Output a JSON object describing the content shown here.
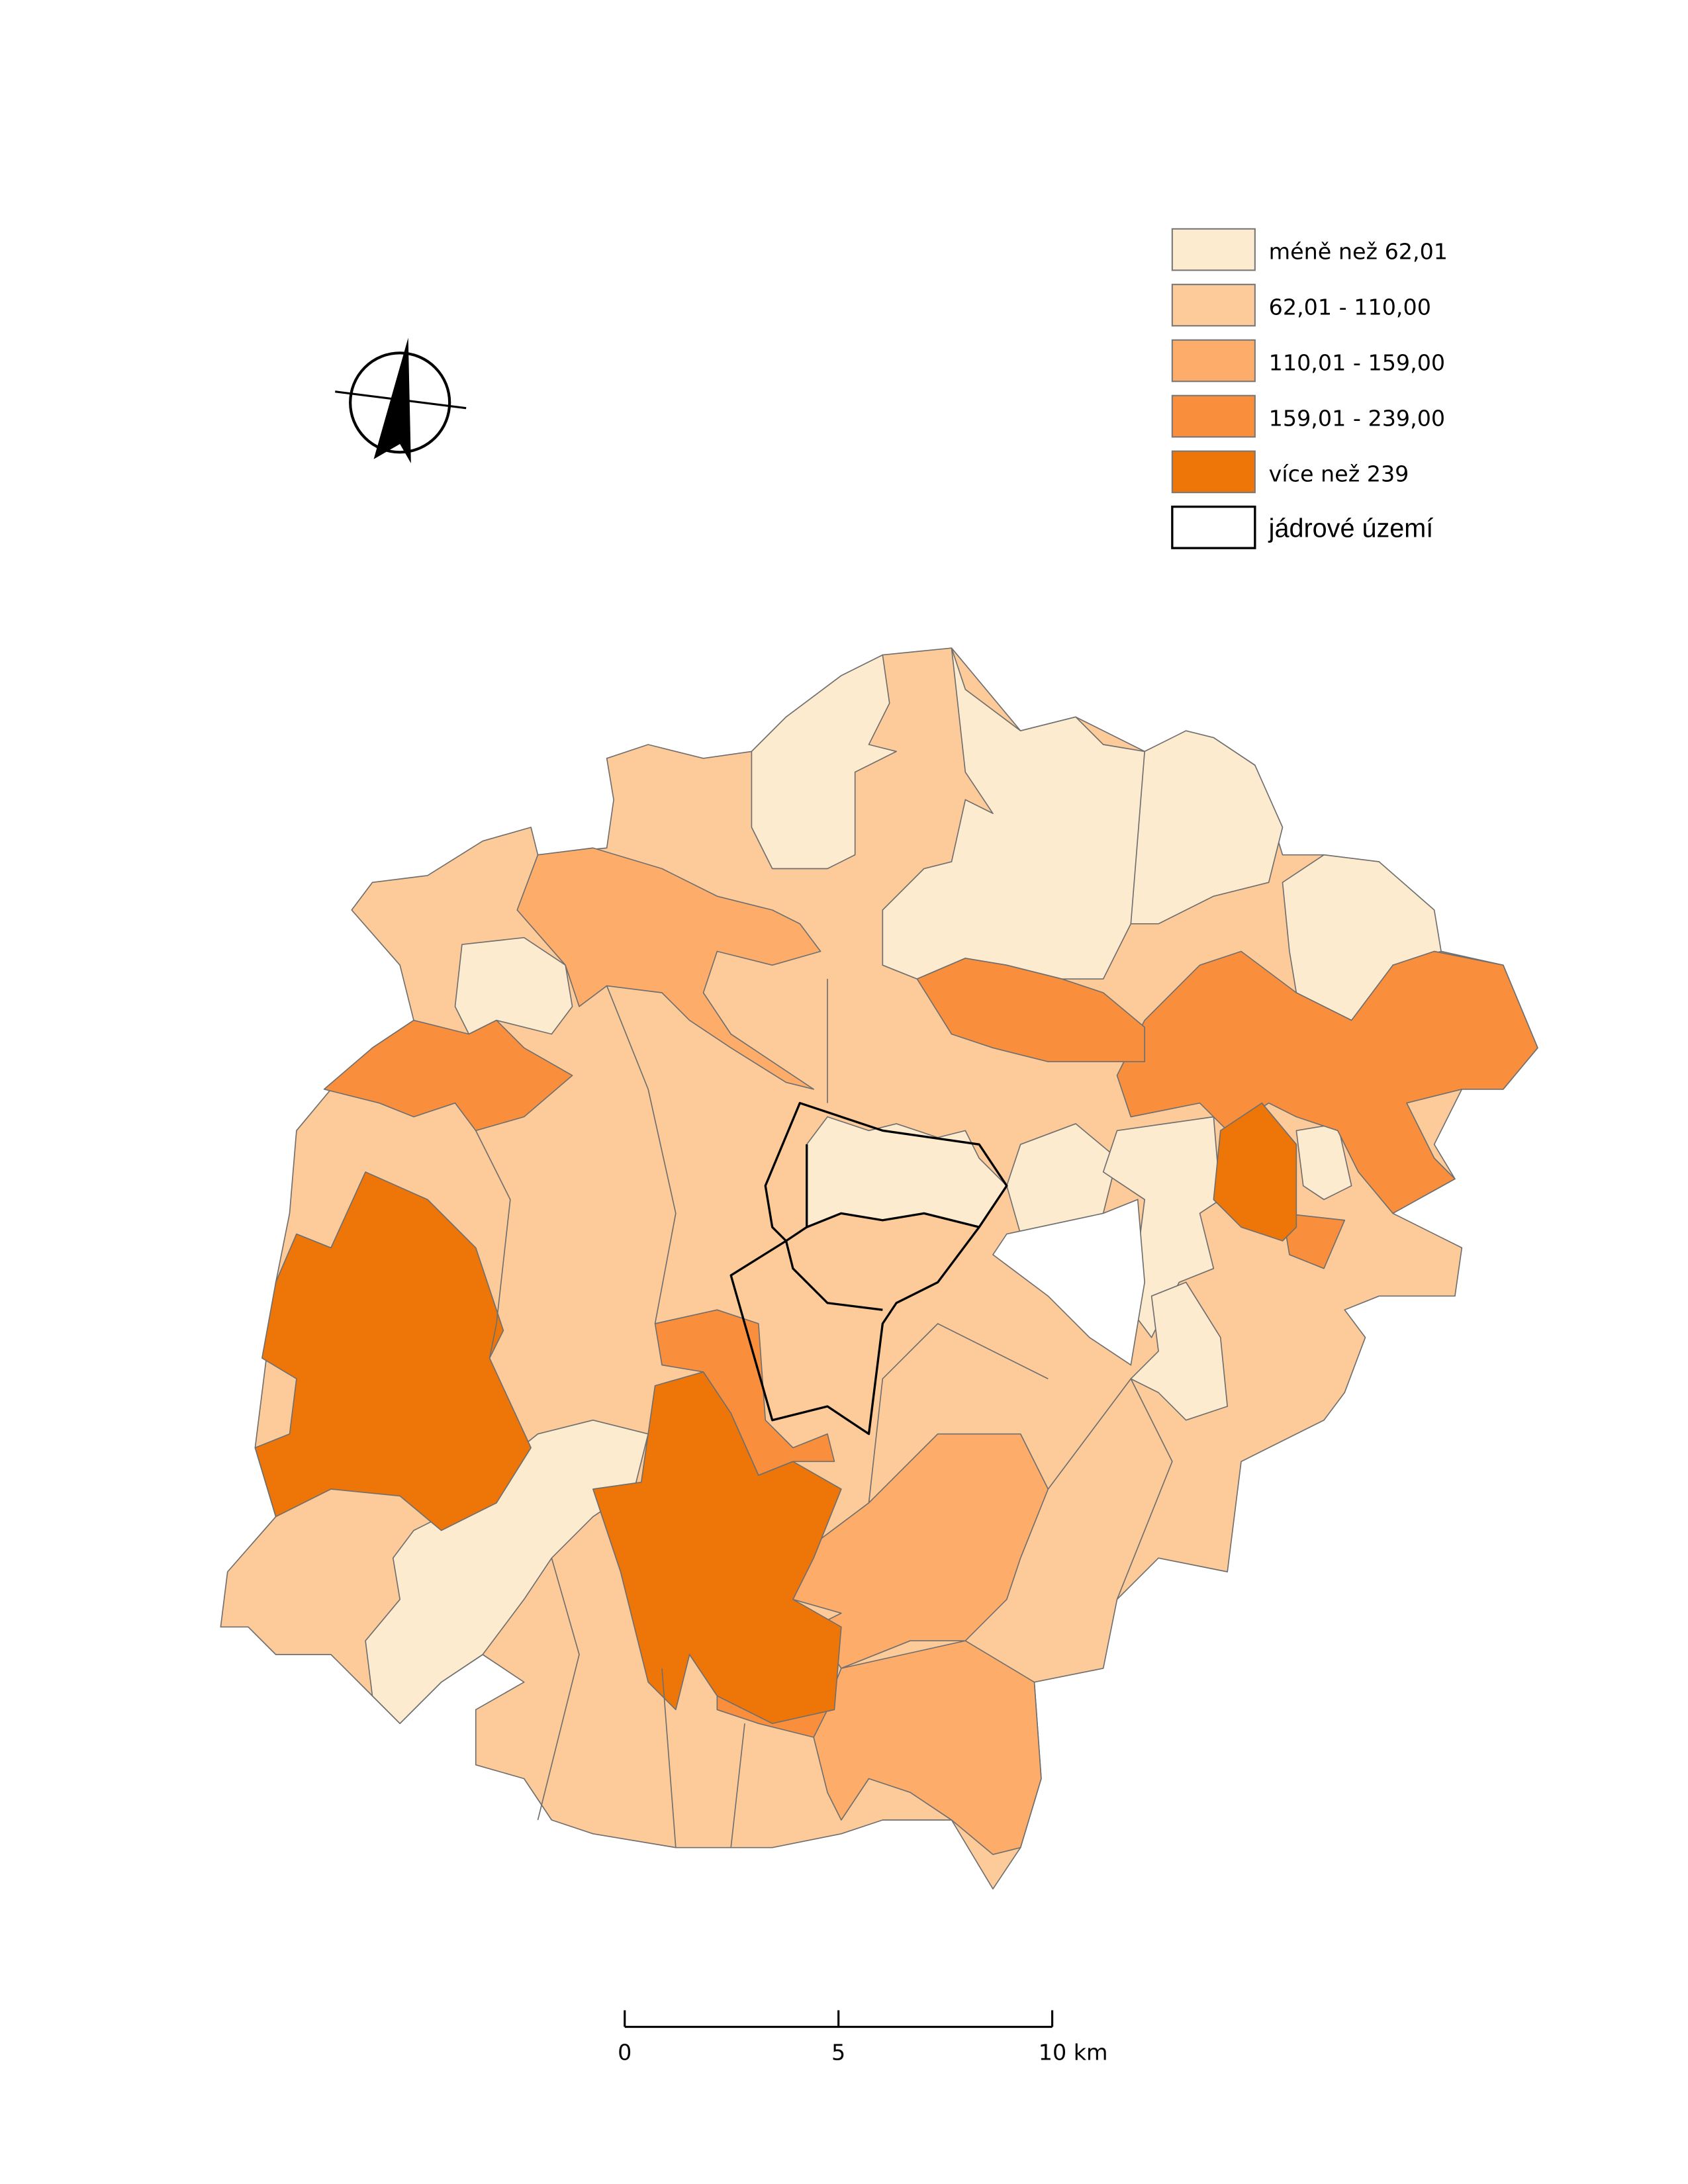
{
  "legend": {
    "items": [
      {
        "label": "méně než 62,01",
        "color": "#fdebd0"
      },
      {
        "label": "62,01 - 110,00",
        "color": "#fdcb9a"
      },
      {
        "label": "110,01 - 159,00",
        "color": "#fdac69"
      },
      {
        "label": "159,01 - 239,00",
        "color": "#f98f3c"
      },
      {
        "label": "více než 239",
        "color": "#ee7508"
      },
      {
        "label": "jádrové území",
        "color": "#ffffff"
      }
    ]
  },
  "scale_bar": {
    "range": [
      0,
      10
    ],
    "ticks": [
      0,
      5,
      {
        "value": 10,
        "label": "10 km"
      }
    ]
  }
}
